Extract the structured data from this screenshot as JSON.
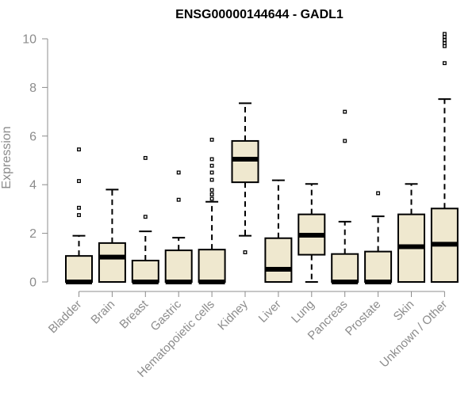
{
  "chart_data": {
    "type": "box",
    "title": "ENSG00000144644 - GADL1",
    "ylabel": "Expression",
    "ylim": [
      0,
      10
    ],
    "yticks": [
      0,
      2,
      4,
      6,
      8,
      10
    ],
    "grid": false,
    "colors": {
      "box_fill": "#efe8cf",
      "box_stroke": "#000000",
      "axis": "#8c8c8c"
    },
    "categories": [
      "Bladder",
      "Brain",
      "Breast",
      "Gastric",
      "Hematopoietic cells",
      "Kidney",
      "Liver",
      "Lung",
      "Pancreas",
      "Prostate",
      "Skin",
      "Unknown / Other"
    ],
    "boxes": [
      {
        "category": "Bladder",
        "whisker_low": 0,
        "q1": 0,
        "median": 0,
        "q3": 1.07,
        "whisker_high": 1.9,
        "outliers": [
          2.75,
          3.05,
          4.15,
          5.45
        ]
      },
      {
        "category": "Brain",
        "whisker_low": 0,
        "q1": 0,
        "median": 1.02,
        "q3": 1.6,
        "whisker_high": 3.8,
        "outliers": []
      },
      {
        "category": "Breast",
        "whisker_low": 0,
        "q1": 0,
        "median": 0,
        "q3": 0.88,
        "whisker_high": 2.08,
        "outliers": [
          2.68,
          5.1
        ]
      },
      {
        "category": "Gastric",
        "whisker_low": 0,
        "q1": 0,
        "median": 0,
        "q3": 1.3,
        "whisker_high": 1.82,
        "outliers": [
          3.38,
          4.5
        ]
      },
      {
        "category": "Hematopoietic cells",
        "whisker_low": 0,
        "q1": 0,
        "median": 0,
        "q3": 1.33,
        "whisker_high": 3.3,
        "outliers": [
          3.42,
          3.6,
          3.78,
          4.2,
          4.5,
          4.78,
          5.05,
          5.85
        ]
      },
      {
        "category": "Kidney",
        "whisker_low": 1.9,
        "q1": 4.1,
        "median": 5.05,
        "q3": 5.8,
        "whisker_high": 7.35,
        "outliers": [
          1.22
        ]
      },
      {
        "category": "Liver",
        "whisker_low": 0,
        "q1": 0,
        "median": 0.52,
        "q3": 1.8,
        "whisker_high": 4.18,
        "outliers": []
      },
      {
        "category": "Lung",
        "whisker_low": 0,
        "q1": 1.12,
        "median": 1.92,
        "q3": 2.78,
        "whisker_high": 4.03,
        "outliers": []
      },
      {
        "category": "Pancreas",
        "whisker_low": 0,
        "q1": 0,
        "median": 0,
        "q3": 1.15,
        "whisker_high": 2.48,
        "outliers": [
          5.8,
          7.0
        ]
      },
      {
        "category": "Prostate",
        "whisker_low": 0,
        "q1": 0,
        "median": 0,
        "q3": 1.25,
        "whisker_high": 2.7,
        "outliers": [
          3.65
        ]
      },
      {
        "category": "Skin",
        "whisker_low": 0,
        "q1": 0,
        "median": 1.45,
        "q3": 2.78,
        "whisker_high": 4.03,
        "outliers": []
      },
      {
        "category": "Unknown / Other",
        "whisker_low": 0,
        "q1": 0,
        "median": 1.55,
        "q3": 3.02,
        "whisker_high": 7.52,
        "outliers": [
          9.0,
          9.7,
          9.82,
          9.95,
          10.08,
          10.2
        ]
      }
    ]
  }
}
